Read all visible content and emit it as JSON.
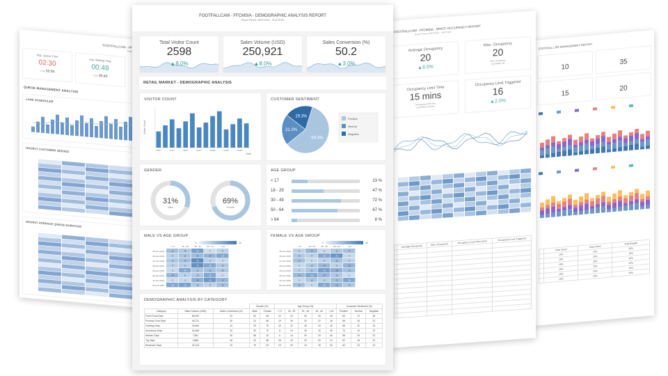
{
  "left_page": {
    "title": "FOOTFALLCAM - FFCMSIA - QUEUE",
    "subtitle": "Report Period: 25/07/2020",
    "kpis": [
      {
        "label": "Avg. Queue Time",
        "value": "02:30",
        "low_label": "LOW",
        "low": "02:00"
      },
      {
        "label": "Avg. Waiting Time",
        "value": "00:49",
        "low_label": "LOW",
        "low": "00:40"
      }
    ],
    "sections": [
      "QUEUE MANAGEMENT ANALYSIS",
      "LANE SCHEDULER",
      "HOURLY CUSTOMER SERVED",
      "HOURLY AVERAGE QUEUE DURATION"
    ]
  },
  "center_page": {
    "title": "FOOTFALLCAM - FFCMSIA - DEMOGRAPHIC ANALYSIS REPORT",
    "subtitle": "Report Period: 25/07/2020 - 31/07/2020",
    "kpis": [
      {
        "label": "Total Visitor Count",
        "value": "2598",
        "change": "8.0%"
      },
      {
        "label": "Sales Volume (USD)",
        "value": "250,921",
        "change": "8.0%"
      },
      {
        "label": "Sales Conversion (%)",
        "value": "50.2",
        "change": "3.0%"
      }
    ],
    "section_title": "RETAIL MARKET - DEMOGRAPHIC ANALYSIS",
    "visitor_count": {
      "title": "VISITOR COUNT",
      "ylabel": "Visitor Count",
      "xlabel": "Date",
      "dates": [
        "25/07",
        "26/07",
        "27/07",
        "28/07",
        "29/07",
        "30/07",
        "31/07",
        "01/08",
        "02/08",
        "03/08",
        "04/08",
        "05/08",
        "06/08",
        "07/08"
      ],
      "values": [
        40,
        55,
        70,
        48,
        65,
        85,
        50,
        62,
        78,
        90,
        45,
        58,
        72,
        60
      ],
      "ylim": [
        0,
        100
      ]
    },
    "sentiment": {
      "title": "CUSTOMER SENTIMENT",
      "slices": [
        {
          "name": "Positive",
          "value": 59.4,
          "label": "59.4%",
          "color": "#a9c5e0"
        },
        {
          "name": "Neutral",
          "value": 21.3,
          "label": "21.3%",
          "color": "#5b8fc4"
        },
        {
          "name": "Negative",
          "value": 19.3,
          "label": "19.3%",
          "color": "#2f6aa6"
        }
      ]
    },
    "gender": {
      "title": "GENDER",
      "items": [
        {
          "pct": "31%",
          "label": "Male",
          "value": 31
        },
        {
          "pct": "69%",
          "label": "Female",
          "value": 69
        }
      ]
    },
    "age_group": {
      "title": "AGE GROUP",
      "rows": [
        {
          "label": "< 17",
          "pct": "23 %",
          "value": 23
        },
        {
          "label": "18 - 29",
          "pct": "47 %",
          "value": 47
        },
        {
          "label": "30 - 49",
          "pct": "72 %",
          "value": 72
        },
        {
          "label": "50 - 64",
          "pct": "67 %",
          "value": 67
        },
        {
          "label": "> 64",
          "pct": "8 %",
          "value": 8
        }
      ]
    },
    "male_vs_age": {
      "title": "MALE VS AGE GROUP",
      "scale_min": "0",
      "scale_max": "30",
      "cols": [
        "< 17",
        "18 - 29",
        "30 - 49",
        "50 - 64",
        "> 64"
      ],
      "rows": [
        {
          "date": "25-Jan 2019",
          "v": [
            "12",
            "10",
            "20",
            "5",
            "8"
          ]
        },
        {
          "date": "26-Jan 2019",
          "v": [
            "8",
            "11",
            "13",
            "15",
            "18"
          ]
        },
        {
          "date": "27-Jan 2019",
          "v": [
            "10",
            "12",
            "25",
            "8",
            "6"
          ]
        },
        {
          "date": "28-Jan 2019",
          "v": [
            "8",
            "9",
            "24",
            "18",
            "10"
          ]
        },
        {
          "date": "29-Jan 2019",
          "v": [
            "6",
            "18",
            "11",
            "12",
            "10"
          ]
        },
        {
          "date": "30-Jan 2019",
          "v": [
            "14",
            "8",
            "10",
            "18",
            "5"
          ]
        },
        {
          "date": "31-Jan 2019",
          "v": [
            "5",
            "6",
            "16",
            "22",
            "14"
          ]
        },
        {
          "date": "01-Feb 2019",
          "v": [
            "18",
            "20",
            "10",
            "8",
            "12"
          ]
        }
      ]
    },
    "female_vs_age": {
      "title": "FEMALE VS AGE GROUP",
      "scale_min": "0",
      "scale_max": "30",
      "cols": [
        "< 17",
        "18 - 29",
        "30 - 49",
        "50 - 64",
        "> 64"
      ],
      "rows": [
        {
          "date": "25-Jan 2019",
          "v": [
            "8",
            "14",
            "6",
            "10",
            "12"
          ]
        },
        {
          "date": "26-Jan 2019",
          "v": [
            "10",
            "8",
            "18",
            "22",
            "6"
          ]
        },
        {
          "date": "27-Jan 2019",
          "v": [
            "12",
            "6",
            "8",
            "12",
            "8"
          ]
        },
        {
          "date": "28-Jan 2019",
          "v": [
            "6",
            "10",
            "14",
            "8",
            "15"
          ]
        },
        {
          "date": "29-Jan 2019",
          "v": [
            "8",
            "11",
            "20",
            "16",
            "12"
          ]
        },
        {
          "date": "30-Jan 2019",
          "v": [
            "14",
            "18",
            "14",
            "10",
            "5"
          ]
        },
        {
          "date": "31-Jan 2019",
          "v": [
            "6",
            "10",
            "8",
            "12",
            "18"
          ]
        },
        {
          "date": "01-Feb 2019",
          "v": [
            "12",
            "6",
            "18",
            "14",
            "10"
          ]
        }
      ]
    },
    "category_table": {
      "title": "DEMOGRAPHIC ANALYSIS BY CATEGORY",
      "group_headers": [
        "Gender (%)",
        "Age Group (%)",
        "Customer Sentiment (%)"
      ],
      "headers": [
        "Category",
        "Sales Volume (USD)",
        "Sales Conversion (%)",
        "Male",
        "Female",
        "< 17",
        "18 - 29",
        "30 - 49",
        "50 - 64",
        "> 64",
        "Positive",
        "Neutral",
        "Negative"
      ],
      "rows": [
        [
          "Fresh Food Dept.",
          "65,092",
          "32",
          "52",
          "48",
          "12",
          "22",
          "30",
          "18",
          "18",
          "60",
          "12",
          "28"
        ],
        [
          "Process Food Dept.",
          "48,721",
          "30",
          "32",
          "68",
          "10",
          "30",
          "20",
          "22",
          "18",
          "58",
          "20",
          "22"
        ],
        [
          "Clothing Dept.",
          "33,564",
          "20",
          "25",
          "75",
          "20",
          "22",
          "25",
          "13",
          "20",
          "55",
          "22",
          "23"
        ],
        [
          "Accessory Dept.",
          "16,008",
          "20",
          "30",
          "70",
          "5",
          "24",
          "26",
          "15",
          "30",
          "70",
          "10",
          "20"
        ],
        [
          "Kitchen Dept.",
          "7,561",
          "30",
          "58",
          "42",
          "6",
          "14",
          "20",
          "20",
          "40",
          "58",
          "20",
          "22"
        ],
        [
          "Toy Dept.",
          "9,856",
          "18",
          "42",
          "58",
          "26",
          "22",
          "20",
          "20",
          "12",
          "62",
          "16",
          "22"
        ],
        [
          "Electronic Dept.",
          "32,113",
          "20",
          "75",
          "25",
          "10",
          "20",
          "15",
          "25",
          "30",
          "60",
          "20",
          "20"
        ]
      ]
    }
  },
  "right_page": {
    "title": "FOOTFALLCAM - FFCMSIA - SPACE OCCUPANCY REPORT",
    "subtitle": "Report Period: 25/07/2020 - 31/07/2020",
    "kpis": [
      {
        "label": "Average Occupancy",
        "value": "20",
        "change": "8.0%"
      },
      {
        "label": "Max. Occupancy",
        "value": "20",
        "note": "Max. Occupancy",
        "note2": "Last Week: 30"
      },
      {
        "label": "Occupancy Limit Time",
        "value": "15 mins",
        "note": "Occupancy Limit Time",
        "note2": "Last Week: 10 mins"
      },
      {
        "label": "Occupancy Limit Triggered",
        "value": "16",
        "change": "2.0%"
      }
    ],
    "table_headers": [
      "",
      "Average Occupancy",
      "Max. Occupancy",
      "Occupancy Limit Time (min)",
      "Occupancy Limit Triggered"
    ]
  },
  "far_right_page": {
    "title": "FOOTFALL LIFE MANAGEMENT REPORT",
    "kpis": [
      "10",
      "35",
      "15",
      "20"
    ],
    "table_headers": [
      "",
      "Total Users",
      "Total Users",
      "Total Bought"
    ],
    "rows": [
      [
        "10%",
        "10%",
        "10%"
      ],
      [
        "10%",
        "10%",
        "10%"
      ],
      [
        "10%",
        "10%",
        "10%"
      ],
      [
        "10%",
        "10%",
        "10%"
      ],
      [
        "10%",
        "10%",
        "10%"
      ],
      [
        "10%",
        "10%",
        "10%"
      ]
    ]
  }
}
